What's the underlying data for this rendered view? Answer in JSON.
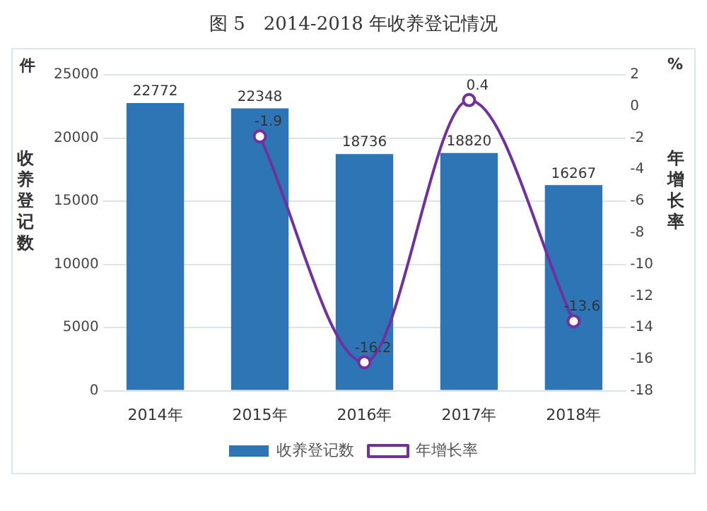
{
  "chart_data": {
    "type": "bar",
    "title": "图 5　2014-2018 年收养登记情况",
    "categories": [
      "2014年",
      "2015年",
      "2016年",
      "2017年",
      "2018年"
    ],
    "series": [
      {
        "name": "收养登记数",
        "color": "#2e75b6",
        "values": [
          22772,
          22348,
          18736,
          18820,
          16267
        ]
      },
      {
        "name": "年增长率",
        "type": "line",
        "axis": "y2",
        "color": "#7030a0",
        "marker": "circle",
        "values": [
          null,
          -1.9,
          -16.2,
          0.4,
          -13.6
        ]
      }
    ],
    "ylabel": "收养登记数",
    "y2label": "年增长率",
    "annotations": [
      "件",
      "%"
    ],
    "ylim": [
      0,
      25000
    ],
    "yticks": [
      0,
      5000,
      10000,
      15000,
      20000,
      25000
    ],
    "y2lim": [
      -18,
      2
    ],
    "y2ticks": [
      -18,
      -16,
      -14,
      -12,
      -10,
      -8,
      -6,
      -4,
      -2,
      0,
      2
    ],
    "grid": "y",
    "legend": "bottom",
    "data_labels": true
  }
}
